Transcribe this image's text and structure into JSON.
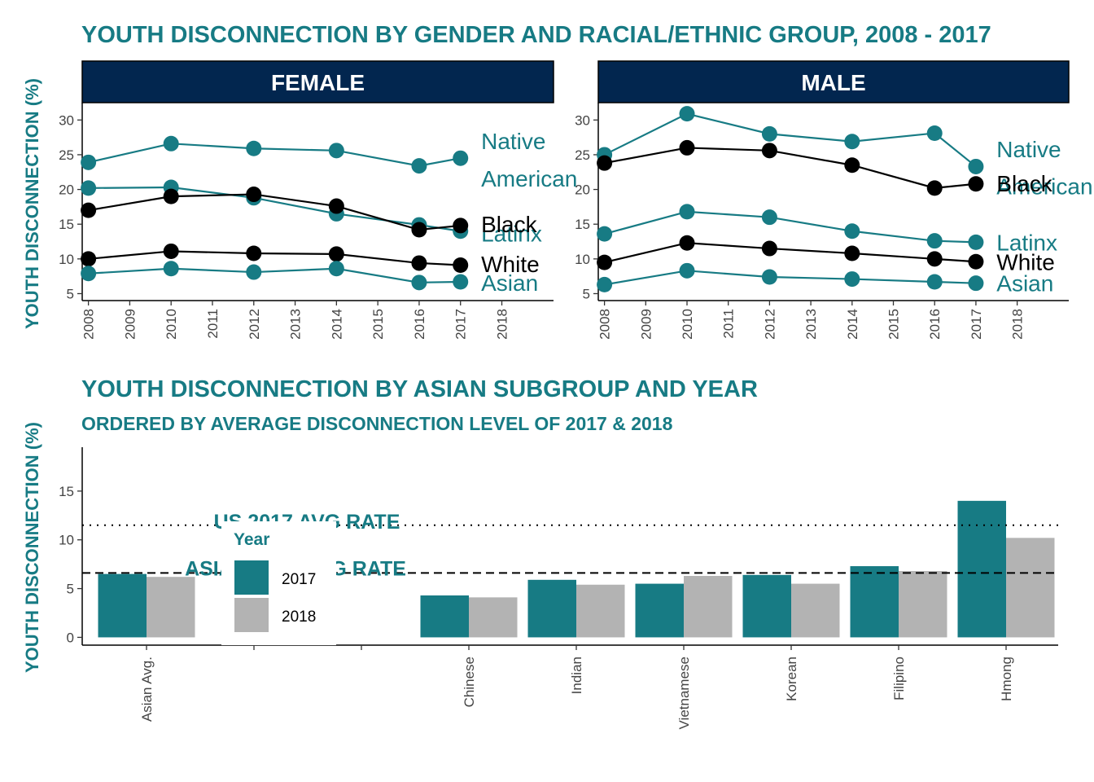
{
  "colors": {
    "teal": "#177b84",
    "black": "#000000",
    "navy": "#02264f",
    "gray": "#b3b3b3"
  },
  "chart_data": [
    {
      "type": "line",
      "title": "YOUTH DISCONNECTION BY GENDER AND RACIAL/ETHNIC GROUP, 2008 - 2017",
      "ylabel": "YOUTH DISCONNECTION (%)",
      "x_ticks": [
        "2008",
        "2009",
        "2010",
        "2011",
        "2012",
        "2013",
        "2014",
        "2015",
        "2016",
        "2017",
        "2018"
      ],
      "y_ticks": [
        "5",
        "10",
        "15",
        "20",
        "25",
        "30"
      ],
      "xlim": [
        2007.85,
        2019.25
      ],
      "ylim": [
        4,
        32.5
      ],
      "grid": false,
      "panels": [
        {
          "strip": "FEMALE",
          "series": [
            {
              "name": "Native American",
              "color": "#177b84",
              "x": [
                2008,
                2010,
                2012,
                2014,
                2016,
                2017
              ],
              "y": [
                23.9,
                26.6,
                25.9,
                25.6,
                23.4,
                24.5
              ]
            },
            {
              "name": "Latinx",
              "color": "#177b84",
              "x": [
                2008,
                2010,
                2012,
                2014,
                2016,
                2017
              ],
              "y": [
                20.2,
                20.3,
                18.8,
                16.5,
                14.9,
                14.0
              ]
            },
            {
              "name": "Black",
              "color": "#000000",
              "x": [
                2008,
                2010,
                2012,
                2014,
                2016,
                2017
              ],
              "y": [
                17.0,
                19.0,
                19.3,
                17.6,
                14.2,
                14.8
              ]
            },
            {
              "name": "White",
              "color": "#000000",
              "x": [
                2008,
                2010,
                2012,
                2014,
                2016,
                2017
              ],
              "y": [
                10.0,
                11.1,
                10.8,
                10.7,
                9.4,
                9.1
              ]
            },
            {
              "name": "Asian",
              "color": "#177b84",
              "x": [
                2008,
                2010,
                2012,
                2014,
                2016,
                2017
              ],
              "y": [
                7.9,
                8.6,
                8.1,
                8.6,
                6.6,
                6.7
              ]
            }
          ],
          "labels": [
            {
              "text": "Native",
              "color": "#177b84",
              "x": 2017.5,
              "y": 27.0
            },
            {
              "text": "American",
              "color": "#177b84",
              "x": 2017.5,
              "y": 21.6
            },
            {
              "text": "Latinx",
              "color": "#177b84",
              "x": 2017.5,
              "y": 13.7
            },
            {
              "text": "Black",
              "color": "#000000",
              "x": 2017.5,
              "y": 15.0
            },
            {
              "text": "White",
              "color": "#000000",
              "x": 2017.5,
              "y": 9.3
            },
            {
              "text": "Asian",
              "color": "#177b84",
              "x": 2017.5,
              "y": 6.6
            }
          ]
        },
        {
          "strip": "MALE",
          "series": [
            {
              "name": "Native American",
              "color": "#177b84",
              "x": [
                2008,
                2010,
                2012,
                2014,
                2016,
                2017
              ],
              "y": [
                25.0,
                30.9,
                28.0,
                26.9,
                28.1,
                23.3
              ]
            },
            {
              "name": "Black",
              "color": "#000000",
              "x": [
                2008,
                2010,
                2012,
                2014,
                2016,
                2017
              ],
              "y": [
                23.8,
                26.0,
                25.6,
                23.5,
                20.2,
                20.8
              ]
            },
            {
              "name": "Latinx",
              "color": "#177b84",
              "x": [
                2008,
                2010,
                2012,
                2014,
                2016,
                2017
              ],
              "y": [
                13.6,
                16.8,
                16.0,
                14.0,
                12.6,
                12.4
              ]
            },
            {
              "name": "White",
              "color": "#000000",
              "x": [
                2008,
                2010,
                2012,
                2014,
                2016,
                2017
              ],
              "y": [
                9.5,
                12.3,
                11.5,
                10.8,
                10.0,
                9.6
              ]
            },
            {
              "name": "Asian",
              "color": "#177b84",
              "x": [
                2008,
                2010,
                2012,
                2014,
                2016,
                2017
              ],
              "y": [
                6.3,
                8.3,
                7.4,
                7.1,
                6.7,
                6.5
              ]
            }
          ],
          "labels": [
            {
              "text": "Native",
              "color": "#177b84",
              "x": 2017.5,
              "y": 25.8
            },
            {
              "text": "American",
              "color": "#177b84",
              "x": 2017.5,
              "y": 20.5
            },
            {
              "text": "Black",
              "color": "#000000",
              "x": 2017.5,
              "y": 20.9
            },
            {
              "text": "Latinx",
              "color": "#177b84",
              "x": 2017.5,
              "y": 12.4
            },
            {
              "text": "White",
              "color": "#000000",
              "x": 2017.5,
              "y": 9.6
            },
            {
              "text": "Asian",
              "color": "#177b84",
              "x": 2017.5,
              "y": 6.5
            }
          ]
        }
      ]
    },
    {
      "type": "bar",
      "title": "YOUTH DISCONNECTION BY ASIAN SUBGROUP AND YEAR",
      "subtitle": "ORDERED BY AVERAGE DISCONNECTION LEVEL OF 2017 & 2018",
      "ylabel": "YOUTH DISCONNECTION (%)",
      "categories": [
        "Asian Avg.",
        "",
        "",
        "Chinese",
        "Indian",
        "Vietnamese",
        "Korean",
        "Filipino",
        "Hmong"
      ],
      "y_ticks": [
        "0",
        "5",
        "10",
        "15"
      ],
      "ylim": [
        -0.8,
        19.5
      ],
      "grid": false,
      "series": [
        {
          "name": "2017",
          "color": "#177b84",
          "values": [
            6.5,
            null,
            null,
            4.3,
            5.9,
            5.5,
            6.4,
            7.3,
            14.0
          ]
        },
        {
          "name": "2018",
          "color": "#b3b3b3",
          "values": [
            6.2,
            null,
            null,
            4.1,
            5.4,
            6.3,
            5.5,
            6.8,
            10.2
          ]
        }
      ],
      "reference_lines": [
        {
          "label": "US 2017 AVG RATE",
          "value": 11.5,
          "style": "dotted"
        },
        {
          "label": "ASIAN 2017 AVG RATE",
          "value": 6.6,
          "style": "dashed"
        }
      ],
      "legend": {
        "title": "Year",
        "entries": [
          "2017",
          "2018"
        ],
        "position": "inside-left"
      }
    }
  ]
}
